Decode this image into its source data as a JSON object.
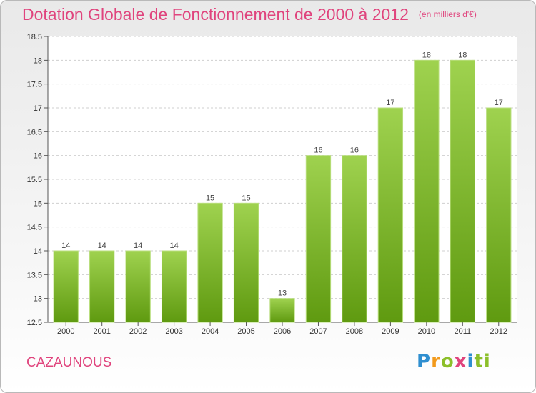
{
  "header": {
    "title": "Dotation Globale de Fonctionnement de 2000 à 2012",
    "unit": "(en milliers d'€)"
  },
  "footer": {
    "commune": "CAZAUNOUS",
    "brand_letters": [
      "P",
      "r",
      "o",
      "x",
      "i",
      "ti"
    ]
  },
  "colors": {
    "accent": "#e0447d",
    "bar_top": "#9fd24f",
    "bar_bottom": "#5f9a10"
  },
  "chart_data": {
    "type": "bar",
    "title": "Dotation Globale de Fonctionnement de 2000 à 2012",
    "subtitle": "(en milliers d'€)",
    "categories": [
      "2000",
      "2001",
      "2002",
      "2003",
      "2004",
      "2005",
      "2006",
      "2007",
      "2008",
      "2009",
      "2010",
      "2011",
      "2012"
    ],
    "values": [
      14,
      14,
      14,
      14,
      15,
      15,
      13,
      16,
      16,
      17,
      18,
      18,
      17
    ],
    "ylim": [
      12.5,
      18.5
    ],
    "yticks": [
      "12.5",
      "13",
      "13.5",
      "14",
      "14.5",
      "15",
      "15.5",
      "16",
      "16.5",
      "17",
      "17.5",
      "18",
      "18.5"
    ],
    "grid": true,
    "legend": "none",
    "xlabel": "",
    "ylabel": ""
  }
}
